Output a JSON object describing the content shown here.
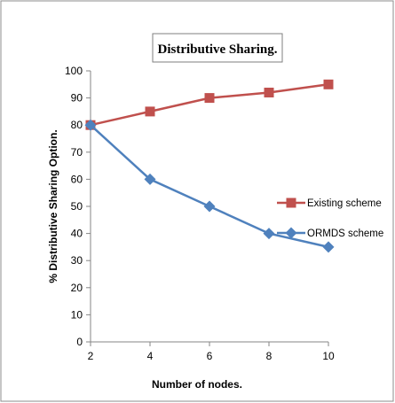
{
  "chart_data": {
    "type": "line",
    "title": "Distributive Sharing.",
    "xlabel": "Number of nodes.",
    "ylabel": "% Distributive Sharing Option.",
    "x": [
      2,
      4,
      6,
      8,
      10
    ],
    "xlim": [
      2,
      10
    ],
    "ylim": [
      0,
      100
    ],
    "yticks": [
      0,
      10,
      20,
      30,
      40,
      50,
      60,
      70,
      80,
      90,
      100
    ],
    "grid": false,
    "legend_position": "right",
    "series": [
      {
        "name": "Existing scheme",
        "values": [
          80,
          85,
          90,
          92,
          95
        ],
        "color": "#C0504D",
        "marker": "square"
      },
      {
        "name": "ORMDS scheme",
        "values": [
          80,
          60,
          50,
          40,
          35
        ],
        "color": "#4F81BD",
        "marker": "diamond"
      }
    ]
  }
}
